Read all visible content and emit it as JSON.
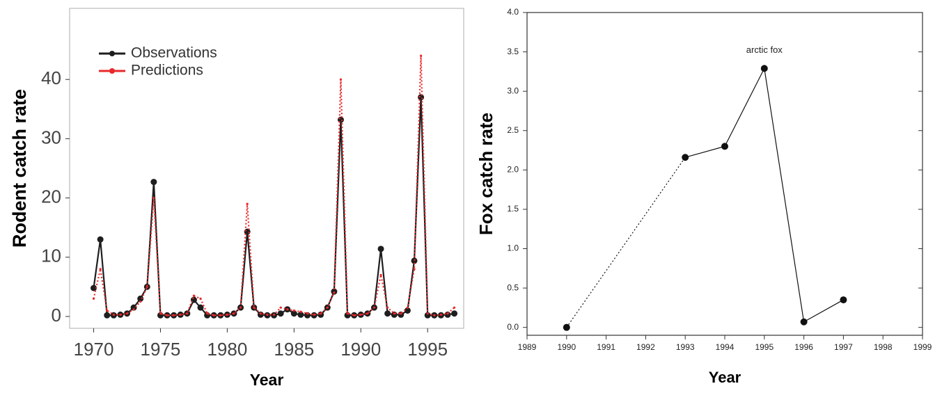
{
  "chart_data": [
    {
      "type": "line",
      "y_label": "Rodent catch rate",
      "x_label": "Year",
      "x": [
        1970,
        1970.5,
        1971,
        1971.5,
        1972,
        1972.5,
        1973,
        1973.5,
        1974,
        1974.5,
        1975,
        1975.5,
        1976,
        1976.5,
        1977,
        1977.5,
        1978,
        1978.5,
        1979,
        1979.5,
        1980,
        1980.5,
        1981,
        1981.5,
        1982,
        1982.5,
        1983,
        1983.5,
        1984,
        1984.5,
        1985,
        1985.5,
        1986,
        1986.5,
        1987,
        1987.5,
        1988,
        1988.5,
        1989,
        1989.5,
        1990,
        1990.5,
        1991,
        1991.5,
        1992,
        1992.5,
        1993,
        1993.5,
        1994,
        1994.5,
        1995,
        1995.5,
        1996,
        1996.5,
        1997
      ],
      "series": [
        {
          "name": "Observations",
          "color": "#1e1e1e",
          "line_style": "solid",
          "values": [
            4.8,
            13,
            0.2,
            0.2,
            0.3,
            0.5,
            1.5,
            3,
            5,
            22.7,
            0.2,
            0.2,
            0.2,
            0.3,
            0.5,
            2.8,
            1.5,
            0.2,
            0.2,
            0.2,
            0.3,
            0.5,
            1.5,
            14.3,
            1.5,
            0.3,
            0.2,
            0.2,
            0.5,
            1.2,
            0.5,
            0.3,
            0.2,
            0.2,
            0.3,
            1.5,
            4.2,
            33.2,
            0.2,
            0.2,
            0.3,
            0.5,
            1.5,
            11.4,
            0.5,
            0.3,
            0.3,
            1.0,
            9.4,
            37,
            0.2,
            0.2,
            0.2,
            0.3,
            0.5
          ]
        },
        {
          "name": "Predictions",
          "color": "#e8282a",
          "line_style": "dotted",
          "values": [
            3,
            8,
            1,
            0.3,
            0.3,
            0.5,
            1.2,
            2.5,
            5,
            20,
            0.5,
            0.2,
            0.2,
            0.3,
            0.5,
            3.5,
            3,
            0.5,
            0.2,
            0.2,
            0.3,
            0.5,
            1.5,
            19,
            1.5,
            0.5,
            0.3,
            0.3,
            1.5,
            1.2,
            1.0,
            0.8,
            0.5,
            0.3,
            0.5,
            1.5,
            4,
            40,
            0.5,
            0.2,
            0.3,
            0.5,
            1.5,
            7,
            1.5,
            0.5,
            0.5,
            1.5,
            8,
            44,
            0.5,
            0.2,
            0.3,
            0.5,
            1.5
          ]
        }
      ],
      "xlim": [
        1968.2,
        1997.7
      ],
      "xticks": [
        1970,
        1975,
        1980,
        1985,
        1990,
        1995
      ],
      "ylim": [
        -2,
        52
      ],
      "yticks": [
        0,
        10,
        20,
        30,
        40
      ],
      "legend": "upper left"
    },
    {
      "type": "line",
      "y_label": "Fox catch rate",
      "x_label": "Year",
      "x": [
        1990,
        1993,
        1994,
        1995,
        1996,
        1997
      ],
      "series": [
        {
          "name": "arctic fox",
          "color": "#111111",
          "line_style": "solid",
          "values": [
            0,
            2.16,
            2.3,
            3.29,
            0.07,
            0.35
          ]
        }
      ],
      "xlim": [
        1989,
        1999
      ],
      "xticks": [
        1989,
        1990,
        1991,
        1992,
        1993,
        1994,
        1995,
        1996,
        1997,
        1998,
        1999
      ],
      "ylim": [
        -0.1,
        4.0
      ],
      "yticks": [
        {
          "value": 0,
          "label": "0.0"
        },
        0.5,
        {
          "value": 1,
          "label": "1.0"
        },
        1.5,
        {
          "value": 2,
          "label": "2.0"
        },
        2.5,
        {
          "value": 3,
          "label": "3.0"
        },
        3.5,
        {
          "value": 4,
          "label": "4.0"
        }
      ],
      "legend": "label at peak"
    }
  ]
}
